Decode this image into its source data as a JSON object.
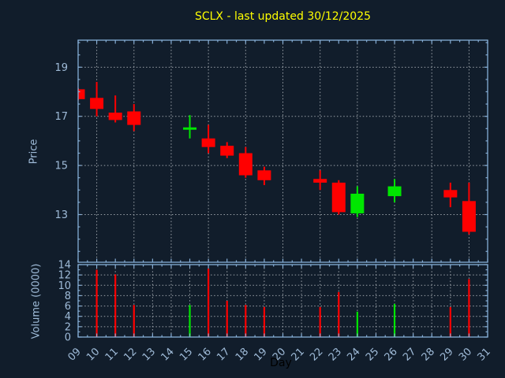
{
  "title": "SCLX - last updated 30/12/2025",
  "colors": {
    "background": "#111d2b",
    "title": "#ffff00",
    "frame": "#86aed6",
    "grid": "#9aa1a8",
    "tick_label": "#9fbbd8",
    "xlabel_text": "#000000",
    "up": "#00e600",
    "down": "#ff0000"
  },
  "chart_data": {
    "type": "candlestick-with-volume",
    "title": "SCLX - last updated 30/12/2025",
    "xlabel": "Day",
    "price_ylabel": "Price",
    "volume_ylabel": "Volume (0000)",
    "x_tick_labels": [
      "09",
      "10",
      "11",
      "12",
      "13",
      "14",
      "15",
      "16",
      "17",
      "18",
      "19",
      "20",
      "21",
      "22",
      "23",
      "24",
      "25",
      "26",
      "27",
      "28",
      "29",
      "30",
      "31"
    ],
    "x_days": [
      9,
      10,
      11,
      12,
      13,
      14,
      15,
      16,
      17,
      18,
      19,
      20,
      21,
      22,
      23,
      24,
      25,
      26,
      27,
      28,
      29,
      30,
      31
    ],
    "xlim": [
      9,
      31
    ],
    "price_yticks": [
      13,
      15,
      17,
      19
    ],
    "price_ylim": [
      11.06,
      20.1
    ],
    "volume_yticks": [
      0,
      2,
      4,
      6,
      8,
      10,
      12,
      14
    ],
    "volume_ylim": [
      0,
      14
    ],
    "grid": true,
    "candles": [
      {
        "day": 9,
        "label": "09",
        "open": 18.1,
        "high": 18.15,
        "low": 17.65,
        "close": 17.7,
        "volume": 0
      },
      {
        "day": 10,
        "label": "10",
        "open": 17.75,
        "high": 18.4,
        "low": 17.0,
        "close": 17.3,
        "volume": 13.0
      },
      {
        "day": 11,
        "label": "11",
        "open": 17.15,
        "high": 17.85,
        "low": 16.75,
        "close": 16.85,
        "volume": 12.1
      },
      {
        "day": 12,
        "label": "12",
        "open": 17.2,
        "high": 17.5,
        "low": 16.4,
        "close": 16.65,
        "volume": 6.2
      },
      {
        "day": 15,
        "label": "15",
        "open": 16.5,
        "high": 17.05,
        "low": 16.1,
        "close": 16.55,
        "volume": 6.2
      },
      {
        "day": 16,
        "label": "16",
        "open": 16.1,
        "high": 16.65,
        "low": 15.5,
        "close": 15.75,
        "volume": 13.2
      },
      {
        "day": 17,
        "label": "17",
        "open": 15.8,
        "high": 15.95,
        "low": 15.3,
        "close": 15.4,
        "volume": 7.0
      },
      {
        "day": 18,
        "label": "18",
        "open": 15.5,
        "high": 15.75,
        "low": 14.5,
        "close": 14.6,
        "volume": 6.2
      },
      {
        "day": 19,
        "label": "19",
        "open": 14.8,
        "high": 14.95,
        "low": 14.2,
        "close": 14.4,
        "volume": 5.8
      },
      {
        "day": 22,
        "label": "22",
        "open": 14.45,
        "high": 14.8,
        "low": 14.0,
        "close": 14.3,
        "volume": 5.8
      },
      {
        "day": 23,
        "label": "23",
        "open": 14.3,
        "high": 14.4,
        "low": 13.0,
        "close": 13.1,
        "volume": 8.7
      },
      {
        "day": 24,
        "label": "24",
        "open": 13.05,
        "high": 14.15,
        "low": 12.9,
        "close": 13.85,
        "volume": 4.9
      },
      {
        "day": 26,
        "label": "26",
        "open": 13.75,
        "high": 14.45,
        "low": 13.5,
        "close": 14.15,
        "volume": 6.4
      },
      {
        "day": 29,
        "label": "29",
        "open": 14.0,
        "high": 14.3,
        "low": 13.3,
        "close": 13.7,
        "volume": 5.8
      },
      {
        "day": 30,
        "label": "30",
        "open": 13.55,
        "high": 14.3,
        "low": 12.2,
        "close": 12.3,
        "volume": 11.2
      }
    ]
  }
}
